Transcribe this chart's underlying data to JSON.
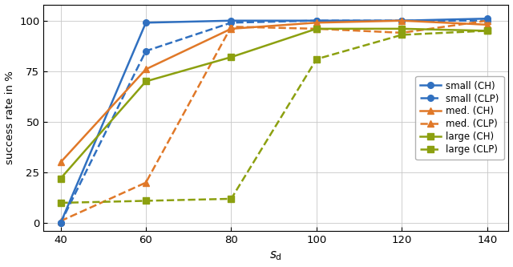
{
  "x": [
    40,
    60,
    80,
    100,
    120,
    140
  ],
  "small_CH": [
    0,
    99,
    100,
    100,
    100,
    101
  ],
  "small_CLP": [
    0,
    85,
    99,
    100,
    100,
    100
  ],
  "med_CH": [
    30,
    76,
    96,
    99,
    100,
    98
  ],
  "med_CLP": [
    1,
    20,
    97,
    96,
    94,
    100
  ],
  "large_CH": [
    22,
    70,
    82,
    96,
    96,
    95
  ],
  "large_CLP": [
    10,
    11,
    12,
    81,
    93,
    95
  ],
  "xlabel": "$s_\\mathrm{d}$",
  "ylabel": "success rate in %",
  "xlim": [
    36,
    145
  ],
  "ylim": [
    -4,
    108
  ],
  "yticks": [
    0,
    25,
    50,
    75,
    100
  ],
  "xticks": [
    40,
    60,
    80,
    100,
    120,
    140
  ],
  "color_blue": "#3070c0",
  "color_orange": "#e07828",
  "color_olive": "#8ca010",
  "legend_entries": [
    "small (CH)",
    "small (CLP)",
    "med. (CH)",
    "med. (CLP)",
    "large (CH)",
    "large (CLP)"
  ]
}
